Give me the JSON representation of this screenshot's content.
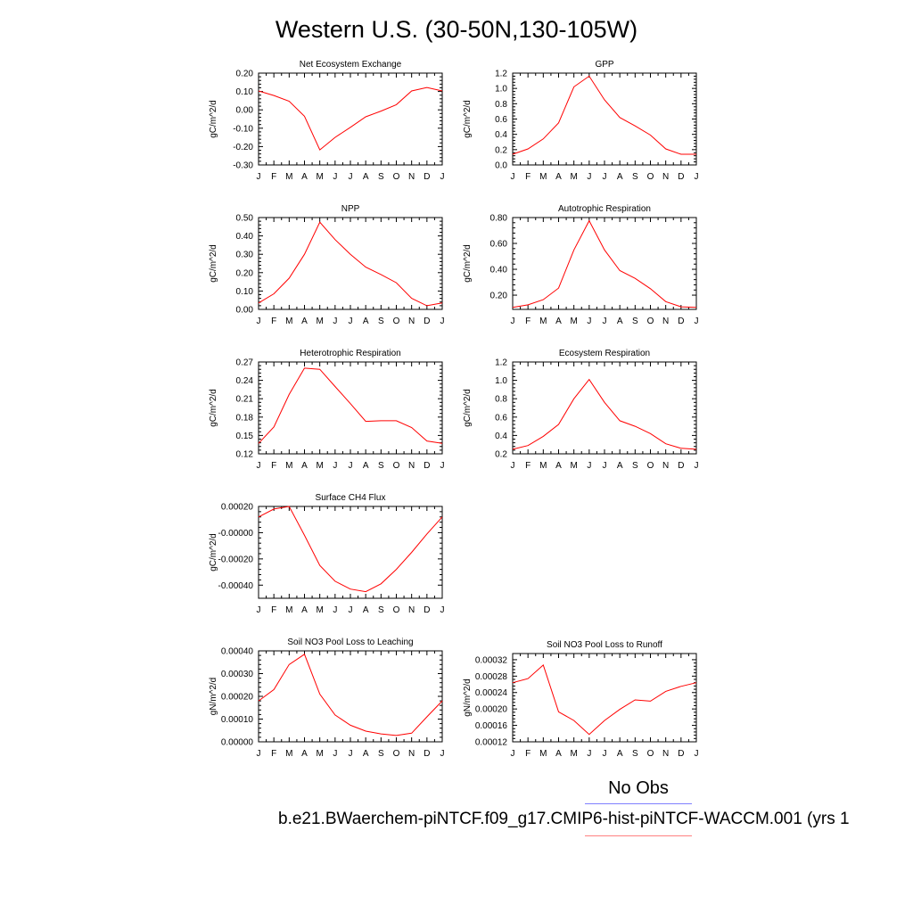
{
  "figure": {
    "title": "Western U.S. (30-50N,130-105W)",
    "legend": {
      "obs_label": "No Obs",
      "case_label": "b.e21.BWaerchem-piNTCF.f09_g17.CMIP6-hist-piNTCF-WACCM.001 (yrs 1",
      "obs_color": "#8080ff",
      "case_color": "#ff8080"
    }
  },
  "colors": {
    "series_line": "#ff0000",
    "axis": "#000000"
  },
  "chart_data": [
    {
      "type": "line",
      "title": "Net Ecosystem Exchange",
      "ylabel": "gC/m^2/d",
      "categories": [
        "J",
        "F",
        "M",
        "A",
        "M",
        "J",
        "J",
        "A",
        "S",
        "O",
        "N",
        "D",
        "J"
      ],
      "values": [
        0.103,
        0.078,
        0.047,
        -0.035,
        -0.218,
        -0.15,
        -0.095,
        -0.038,
        -0.007,
        0.028,
        0.103,
        0.122,
        0.103
      ],
      "ylim": [
        -0.3,
        0.2
      ],
      "yticks": [
        "-0.30",
        "-0.20",
        "-0.10",
        "0.00",
        "0.10",
        "0.20"
      ],
      "ytick_values": [
        -0.3,
        -0.2,
        -0.1,
        0.0,
        0.1,
        0.2
      ]
    },
    {
      "type": "line",
      "title": "GPP",
      "ylabel": "gC/m^2/d",
      "categories": [
        "J",
        "F",
        "M",
        "A",
        "M",
        "J",
        "J",
        "A",
        "S",
        "O",
        "N",
        "D",
        "J"
      ],
      "values": [
        0.14,
        0.21,
        0.34,
        0.55,
        1.02,
        1.16,
        0.85,
        0.62,
        0.51,
        0.39,
        0.21,
        0.14,
        0.14
      ],
      "ylim": [
        0.0,
        1.2
      ],
      "yticks": [
        "0.0",
        "0.2",
        "0.4",
        "0.6",
        "0.8",
        "1.0",
        "1.2"
      ],
      "ytick_values": [
        0.0,
        0.2,
        0.4,
        0.6,
        0.8,
        1.0,
        1.2
      ]
    },
    {
      "type": "line",
      "title": "NPP",
      "ylabel": "gC/m^2/d",
      "categories": [
        "J",
        "F",
        "M",
        "A",
        "M",
        "J",
        "J",
        "A",
        "S",
        "O",
        "N",
        "D",
        "J"
      ],
      "values": [
        0.035,
        0.085,
        0.17,
        0.3,
        0.475,
        0.38,
        0.3,
        0.23,
        0.19,
        0.145,
        0.06,
        0.02,
        0.035
      ],
      "ylim": [
        0.0,
        0.5
      ],
      "yticks": [
        "0.00",
        "0.10",
        "0.20",
        "0.30",
        "0.40",
        "0.50"
      ],
      "ytick_values": [
        0.0,
        0.1,
        0.2,
        0.3,
        0.4,
        0.5
      ]
    },
    {
      "type": "line",
      "title": "Autotrophic Respiration",
      "ylabel": "gC/m^2/d",
      "categories": [
        "J",
        "F",
        "M",
        "A",
        "M",
        "J",
        "J",
        "A",
        "S",
        "O",
        "N",
        "D",
        "J"
      ],
      "values": [
        0.105,
        0.125,
        0.165,
        0.255,
        0.55,
        0.775,
        0.55,
        0.39,
        0.33,
        0.25,
        0.15,
        0.11,
        0.105
      ],
      "ylim": [
        0.09,
        0.8
      ],
      "yticks": [
        "0.20",
        "0.40",
        "0.60",
        "0.80"
      ],
      "ytick_values": [
        0.2,
        0.4,
        0.6,
        0.8
      ]
    },
    {
      "type": "line",
      "title": "Heterotrophic Respiration",
      "ylabel": "gC/m^2/d",
      "categories": [
        "J",
        "F",
        "M",
        "A",
        "M",
        "J",
        "J",
        "A",
        "S",
        "O",
        "N",
        "D",
        "J"
      ],
      "values": [
        0.137,
        0.164,
        0.217,
        0.26,
        0.258,
        0.23,
        0.202,
        0.173,
        0.174,
        0.174,
        0.163,
        0.141,
        0.137
      ],
      "ylim": [
        0.12,
        0.27
      ],
      "yticks": [
        "0.12",
        "0.15",
        "0.18",
        "0.21",
        "0.24",
        "0.27"
      ],
      "ytick_values": [
        0.12,
        0.15,
        0.18,
        0.21,
        0.24,
        0.27
      ]
    },
    {
      "type": "line",
      "title": "Ecosystem Respiration",
      "ylabel": "gC/m^2/d",
      "categories": [
        "J",
        "F",
        "M",
        "A",
        "M",
        "J",
        "J",
        "A",
        "S",
        "O",
        "N",
        "D",
        "J"
      ],
      "values": [
        0.25,
        0.29,
        0.39,
        0.52,
        0.8,
        1.01,
        0.76,
        0.56,
        0.5,
        0.42,
        0.31,
        0.26,
        0.25
      ],
      "ylim": [
        0.2,
        1.2
      ],
      "yticks": [
        "0.2",
        "0.4",
        "0.6",
        "0.8",
        "1.0",
        "1.2"
      ],
      "ytick_values": [
        0.2,
        0.4,
        0.6,
        0.8,
        1.0,
        1.2
      ]
    },
    {
      "type": "line",
      "title": "Surface CH4 Flux",
      "ylabel": "gC/m^2/d",
      "categories": [
        "J",
        "F",
        "M",
        "A",
        "M",
        "J",
        "J",
        "A",
        "S",
        "O",
        "N",
        "D",
        "J"
      ],
      "values": [
        0.00012,
        0.00018,
        0.0002,
        -2e-05,
        -0.00025,
        -0.00037,
        -0.00043,
        -0.00045,
        -0.00039,
        -0.00028,
        -0.00015,
        -1e-05,
        0.00012
      ],
      "ylim": [
        -0.0005,
        0.0002
      ],
      "yticks": [
        "-0.00040",
        "-0.00020",
        "-0.00000",
        "0.00020"
      ],
      "ytick_values": [
        -0.0004,
        -0.0002,
        0.0,
        0.0002
      ]
    },
    {
      "type": "line",
      "title": "Soil NO3 Pool Loss to Leaching",
      "ylabel": "gN/m^2/d",
      "categories": [
        "J",
        "F",
        "M",
        "A",
        "M",
        "J",
        "J",
        "A",
        "S",
        "O",
        "N",
        "D",
        "J"
      ],
      "values": [
        0.00018,
        0.00023,
        0.00034,
        0.000385,
        0.00021,
        0.000118,
        7.3e-05,
        4.7e-05,
        3.5e-05,
        2.8e-05,
        3.8e-05,
        0.00011,
        0.00018
      ],
      "ylim": [
        0.0,
        0.0004
      ],
      "yticks": [
        "0.00000",
        "0.00010",
        "0.00020",
        "0.00030",
        "0.00040"
      ],
      "ytick_values": [
        0.0,
        0.0001,
        0.0002,
        0.0003,
        0.0004
      ]
    },
    {
      "type": "line",
      "title": "Soil NO3 Pool Loss to Runoff",
      "ylabel": "gN/m^2/d",
      "categories": [
        "J",
        "F",
        "M",
        "A",
        "M",
        "J",
        "J",
        "A",
        "S",
        "O",
        "N",
        "D",
        "J"
      ],
      "values": [
        0.000264,
        0.000274,
        0.000307,
        0.000193,
        0.000172,
        0.000138,
        0.000172,
        0.000199,
        0.000222,
        0.000219,
        0.000243,
        0.000255,
        0.000264
      ],
      "ylim": [
        0.00012,
        0.000335
      ],
      "yticks": [
        "0.00012",
        "0.00016",
        "0.00020",
        "0.00024",
        "0.00028",
        "0.00032"
      ],
      "ytick_values": [
        0.00012,
        0.00016,
        0.0002,
        0.00024,
        0.00028,
        0.00032
      ]
    }
  ]
}
